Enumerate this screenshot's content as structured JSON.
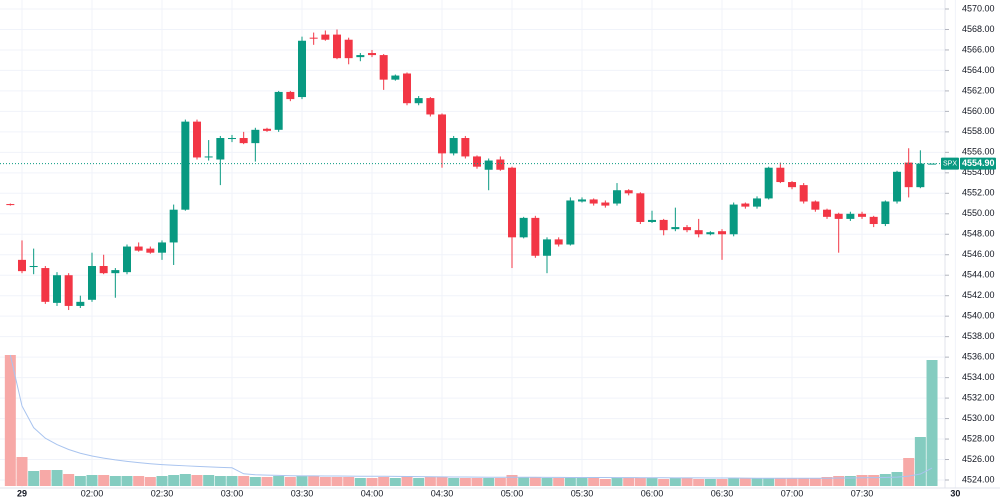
{
  "chart_data": {
    "type": "candlestick",
    "symbol": "SPX",
    "last_price": {
      "value": 4554.9,
      "label": "4554.90"
    },
    "up_color": "#089981",
    "down_color": "#f23645",
    "volume_up_color": "#84ccc0",
    "volume_down_color": "#f7a9a7",
    "volume_ma_length": 20,
    "volume_ma_color": "#a9c4ef",
    "open": [
      4550.95,
      4545.5,
      4544.8,
      4544.7,
      4541.3,
      4544.0,
      4541.0,
      4541.6,
      4544.9,
      4544.2,
      4544.3,
      4546.8,
      4546.6,
      4546.2,
      4547.2,
      4550.4,
      4559.0,
      4555.5,
      4555.3,
      4557.3,
      4557.4,
      4556.9,
      4558.3,
      4558.2,
      4561.9,
      4561.4,
      4567.2,
      4567.5,
      4567.5,
      4567.0,
      4565.3,
      4565.7,
      4565.5,
      4563.1,
      4563.7,
      4560.8,
      4561.3,
      4559.7,
      4555.9,
      4557.4,
      4555.6,
      4554.3,
      4555.3,
      4554.5,
      4547.7,
      4549.6,
      4545.9,
      4547.5,
      4547.0,
      4551.2,
      4551.4,
      4551.1,
      4551.0,
      4552.3,
      4552.0,
      4549.2,
      4549.4,
      4548.5,
      4548.7,
      4548.4,
      4548.0,
      4548.3,
      4548.0,
      4551.0,
      4550.7,
      4551.5,
      4554.5,
      4553.1,
      4552.8,
      4551.2,
      4550.4,
      4550.0,
      4549.5,
      4550.0,
      4549.7,
      4549.0,
      4551.2,
      4555.0,
      4552.6,
      4554.9
    ],
    "high": [
      4551.0,
      4547.4,
      4546.6,
      4544.9,
      4544.3,
      4544.2,
      4542.0,
      4546.2,
      4546.0,
      4544.7,
      4547.0,
      4547.2,
      4546.8,
      4547.4,
      4550.9,
      4559.2,
      4559.2,
      4557.2,
      4557.6,
      4557.7,
      4558.0,
      4558.4,
      4558.4,
      4562.0,
      4562.0,
      4567.3,
      4567.7,
      4567.9,
      4568.0,
      4567.2,
      4565.7,
      4566.0,
      4565.6,
      4563.6,
      4563.8,
      4561.5,
      4561.4,
      4559.8,
      4557.6,
      4557.6,
      4555.7,
      4555.4,
      4555.6,
      4554.6,
      4549.7,
      4549.8,
      4547.7,
      4547.7,
      4551.6,
      4551.6,
      4551.5,
      4551.3,
      4553.0,
      4552.4,
      4552.1,
      4550.3,
      4549.5,
      4550.6,
      4548.9,
      4549.5,
      4548.3,
      4548.5,
      4551.1,
      4551.1,
      4551.7,
      4554.6,
      4555.0,
      4553.2,
      4553.0,
      4551.3,
      4550.5,
      4550.1,
      4550.2,
      4550.2,
      4549.8,
      4551.3,
      4554.2,
      4556.4,
      4556.2,
      4554.9
    ],
    "low": [
      4550.8,
      4544.2,
      4544.1,
      4541.2,
      4541.0,
      4540.6,
      4540.8,
      4541.4,
      4544.1,
      4541.8,
      4544.1,
      4546.3,
      4546.1,
      4545.5,
      4545.0,
      4550.3,
      4555.3,
      4555.2,
      4552.8,
      4557.0,
      4556.8,
      4555.1,
      4558.0,
      4558.0,
      4561.0,
      4561.2,
      4566.5,
      4566.9,
      4565.1,
      4564.6,
      4564.9,
      4565.3,
      4562.1,
      4563.0,
      4560.6,
      4560.6,
      4559.5,
      4554.5,
      4555.7,
      4555.4,
      4554.4,
      4552.3,
      4554.2,
      4544.7,
      4547.6,
      4545.7,
      4544.2,
      4546.8,
      4546.9,
      4551.1,
      4550.8,
      4550.6,
      4550.8,
      4551.8,
      4549.0,
      4549.1,
      4547.9,
      4548.3,
      4548.2,
      4547.7,
      4547.9,
      4545.5,
      4547.8,
      4550.5,
      4550.5,
      4551.4,
      4553.0,
      4552.4,
      4551.0,
      4550.2,
      4549.5,
      4546.2,
      4549.3,
      4549.5,
      4548.7,
      4548.8,
      4551.0,
      4551.6,
      4552.5,
      4554.9
    ],
    "close": [
      4550.85,
      4544.4,
      4544.9,
      4541.4,
      4544.0,
      4541.0,
      4541.4,
      4544.9,
      4544.2,
      4544.5,
      4546.8,
      4546.4,
      4546.2,
      4547.2,
      4550.4,
      4559.0,
      4555.5,
      4555.6,
      4557.4,
      4557.4,
      4556.9,
      4558.2,
      4558.1,
      4561.9,
      4561.2,
      4566.9,
      4567.1,
      4567.0,
      4565.2,
      4565.2,
      4565.5,
      4565.5,
      4563.1,
      4563.5,
      4560.8,
      4561.3,
      4559.7,
      4555.9,
      4557.4,
      4555.6,
      4554.6,
      4555.2,
      4554.3,
      4547.7,
      4549.6,
      4545.9,
      4547.5,
      4547.0,
      4551.3,
      4551.4,
      4551.0,
      4550.8,
      4552.3,
      4552.0,
      4549.2,
      4549.4,
      4548.4,
      4548.7,
      4548.4,
      4548.0,
      4548.2,
      4548.0,
      4550.9,
      4550.7,
      4551.5,
      4554.5,
      4553.1,
      4552.6,
      4551.2,
      4550.4,
      4549.7,
      4549.5,
      4550.0,
      4549.7,
      4549.0,
      4551.2,
      4554.1,
      4552.6,
      4554.9,
      4554.9
    ],
    "volume": [
      131,
      29,
      15,
      16,
      16,
      12,
      10,
      11,
      11,
      10,
      10,
      10,
      9,
      10,
      11,
      12,
      11,
      11,
      10,
      10,
      10,
      9,
      9,
      10,
      9,
      10,
      10,
      9,
      9,
      9,
      8,
      8,
      9,
      8,
      10,
      8,
      9,
      9,
      8,
      8,
      8,
      8,
      8,
      11,
      9,
      9,
      8,
      8,
      8,
      8,
      8,
      7,
      8,
      8,
      8,
      8,
      7,
      8,
      8,
      7,
      7,
      7,
      8,
      8,
      8,
      8,
      8,
      8,
      8,
      8,
      9,
      10,
      10,
      11,
      11,
      12,
      14,
      28,
      49,
      126
    ],
    "ylim": [
      4524,
      4570
    ],
    "yticks": [
      {
        "value": 4524,
        "label": "4524.00"
      },
      {
        "value": 4526,
        "label": "4526.00"
      },
      {
        "value": 4528,
        "label": "4528.00"
      },
      {
        "value": 4530,
        "label": "4530.00"
      },
      {
        "value": 4532,
        "label": "4532.00"
      },
      {
        "value": 4534,
        "label": "4534.00"
      },
      {
        "value": 4536,
        "label": "4536.00"
      },
      {
        "value": 4538,
        "label": "4538.00"
      },
      {
        "value": 4540,
        "label": "4540.00"
      },
      {
        "value": 4542,
        "label": "4542.00"
      },
      {
        "value": 4544,
        "label": "4544.00"
      },
      {
        "value": 4546,
        "label": "4546.00"
      },
      {
        "value": 4548,
        "label": "4548.00"
      },
      {
        "value": 4550,
        "label": "4550.00"
      },
      {
        "value": 4552,
        "label": "4552.00"
      },
      {
        "value": 4554,
        "label": "4554.00"
      },
      {
        "value": 4556,
        "label": "4556.00"
      },
      {
        "value": 4558,
        "label": "4558.00"
      },
      {
        "value": 4560,
        "label": "4560.00"
      },
      {
        "value": 4562,
        "label": "4562.00"
      },
      {
        "value": 4564,
        "label": "4564.00"
      },
      {
        "value": 4566,
        "label": "4566.00"
      },
      {
        "value": 4568,
        "label": "4568.00"
      },
      {
        "value": 4570,
        "label": "4570.00"
      }
    ],
    "xticks": [
      {
        "value": 1,
        "label": "29"
      },
      {
        "value": 7,
        "label": "02:00"
      },
      {
        "value": 13,
        "label": "02:30"
      },
      {
        "value": 19,
        "label": "03:00"
      },
      {
        "value": 25,
        "label": "03:30"
      },
      {
        "value": 31,
        "label": "04:00"
      },
      {
        "value": 37,
        "label": "04:30"
      },
      {
        "value": 43,
        "label": "05:00"
      },
      {
        "value": 49,
        "label": "05:30"
      },
      {
        "value": 55,
        "label": "06:00"
      },
      {
        "value": 61,
        "label": "06:30"
      },
      {
        "value": 67,
        "label": "07:00"
      },
      {
        "value": 73,
        "label": "07:30"
      },
      {
        "value": 81,
        "label": "30"
      }
    ],
    "grid": true
  }
}
